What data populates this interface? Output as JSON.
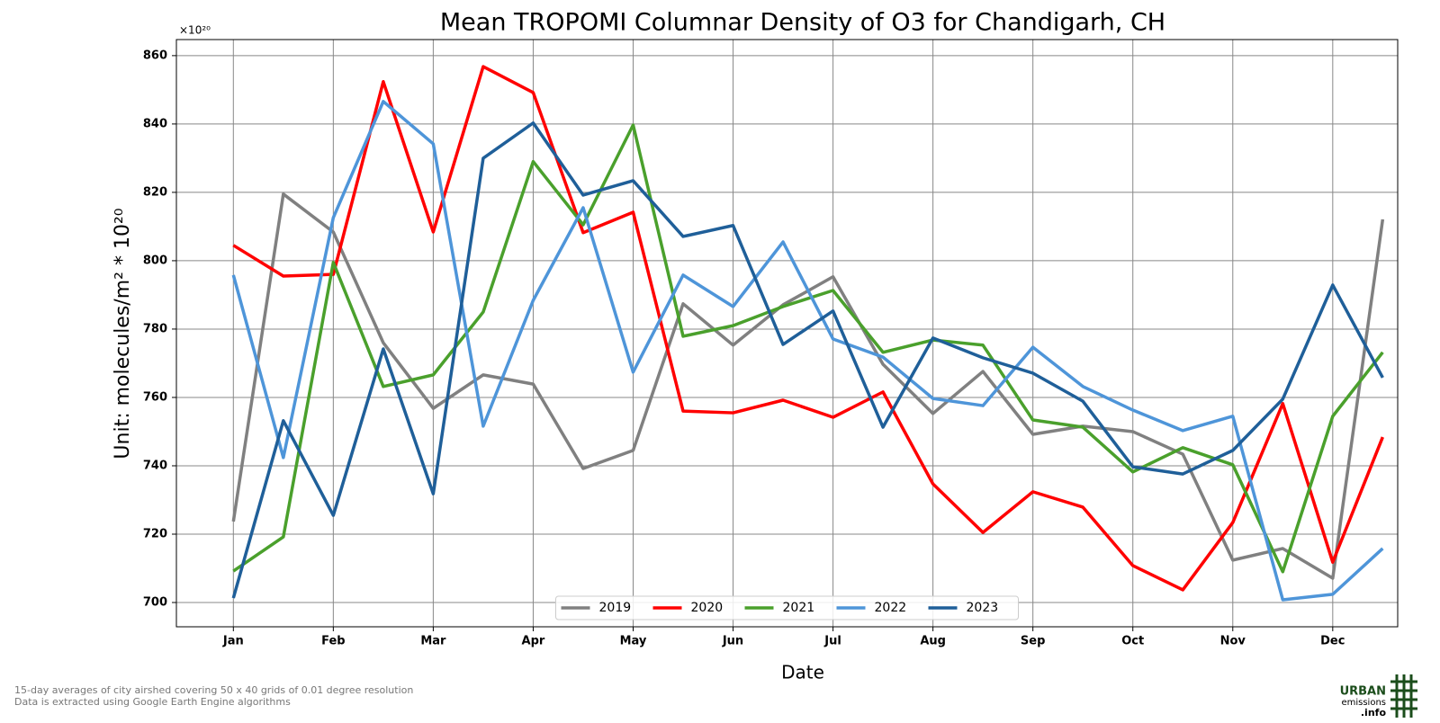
{
  "chart_data": {
    "type": "line",
    "title": "Mean TROPOMI Columnar Density of O3 for Chandigarh, CH",
    "x_label": "Date",
    "y_label": "Unit: molecules/m² * 10²⁰",
    "y_offset_label": "×10²⁰",
    "categories": [
      "Jan",
      null,
      "Feb",
      null,
      "Mar",
      null,
      "Apr",
      null,
      "May",
      null,
      "Jun",
      null,
      "Jul",
      null,
      "Aug",
      null,
      "Sep",
      null,
      "Oct",
      null,
      "Nov",
      null,
      "Dec",
      null
    ],
    "series": [
      {
        "name": "2019",
        "color": "#808080",
        "values": [
          723.7,
          819.5,
          808.4,
          776,
          756.8,
          766.6,
          763.9,
          739.2,
          744.5,
          787.4,
          775.3,
          787.1,
          795.3,
          769.7,
          755.3,
          767.6,
          749.2,
          751.6,
          750,
          743.4,
          712.4,
          715.8,
          707.1,
          812.1
        ]
      },
      {
        "name": "2020",
        "color": "#ff0000",
        "values": [
          804.5,
          795.5,
          796,
          852.4,
          808.4,
          856.8,
          849.2,
          808.2,
          814.2,
          756,
          755.5,
          759.2,
          754.2,
          761.6,
          734.7,
          720.5,
          732.4,
          727.9,
          710.8,
          703.7,
          723.4,
          758.2,
          711.8,
          748.4
        ]
      },
      {
        "name": "2021",
        "color": "#4aa02c",
        "values": [
          709.2,
          719.2,
          799.5,
          763.2,
          766.6,
          785,
          829,
          810.5,
          839.7,
          777.9,
          781,
          786.6,
          791.3,
          773.2,
          776.8,
          775.3,
          753.4,
          751.3,
          738.2,
          745.3,
          740.3,
          709,
          754.5,
          773.2
        ]
      },
      {
        "name": "2022",
        "color": "#4e95d9",
        "values": [
          795.8,
          742.4,
          812.6,
          846.6,
          834.2,
          751.6,
          788.4,
          815.5,
          767.4,
          795.8,
          786.6,
          805.5,
          777.1,
          771.8,
          759.7,
          757.6,
          774.7,
          763.2,
          756.3,
          750.3,
          754.5,
          700.8,
          702.4,
          715.8
        ]
      },
      {
        "name": "2023",
        "color": "#1f5f99",
        "values": [
          701.3,
          753.2,
          725.5,
          774.2,
          731.8,
          830,
          840.3,
          819.2,
          823.4,
          807.1,
          810.3,
          775.5,
          785.3,
          751.3,
          777.4,
          771.6,
          767.1,
          758.9,
          739.7,
          737.6,
          744.5,
          759.5,
          792.9,
          765.8
        ]
      }
    ],
    "ylim": [
      692.9,
      864.7
    ],
    "yticks": [
      700,
      720,
      740,
      760,
      780,
      800,
      820,
      840,
      860
    ],
    "grid": true,
    "legend": "lower center"
  },
  "footer": {
    "notes": [
      "15-day averages of city airshed covering 50 x 40 grids of 0.01 degree resolution",
      "Data is extracted using Google Earth Engine algorithms"
    ],
    "logo": [
      "URBAN",
      "emissions",
      ".info"
    ]
  }
}
